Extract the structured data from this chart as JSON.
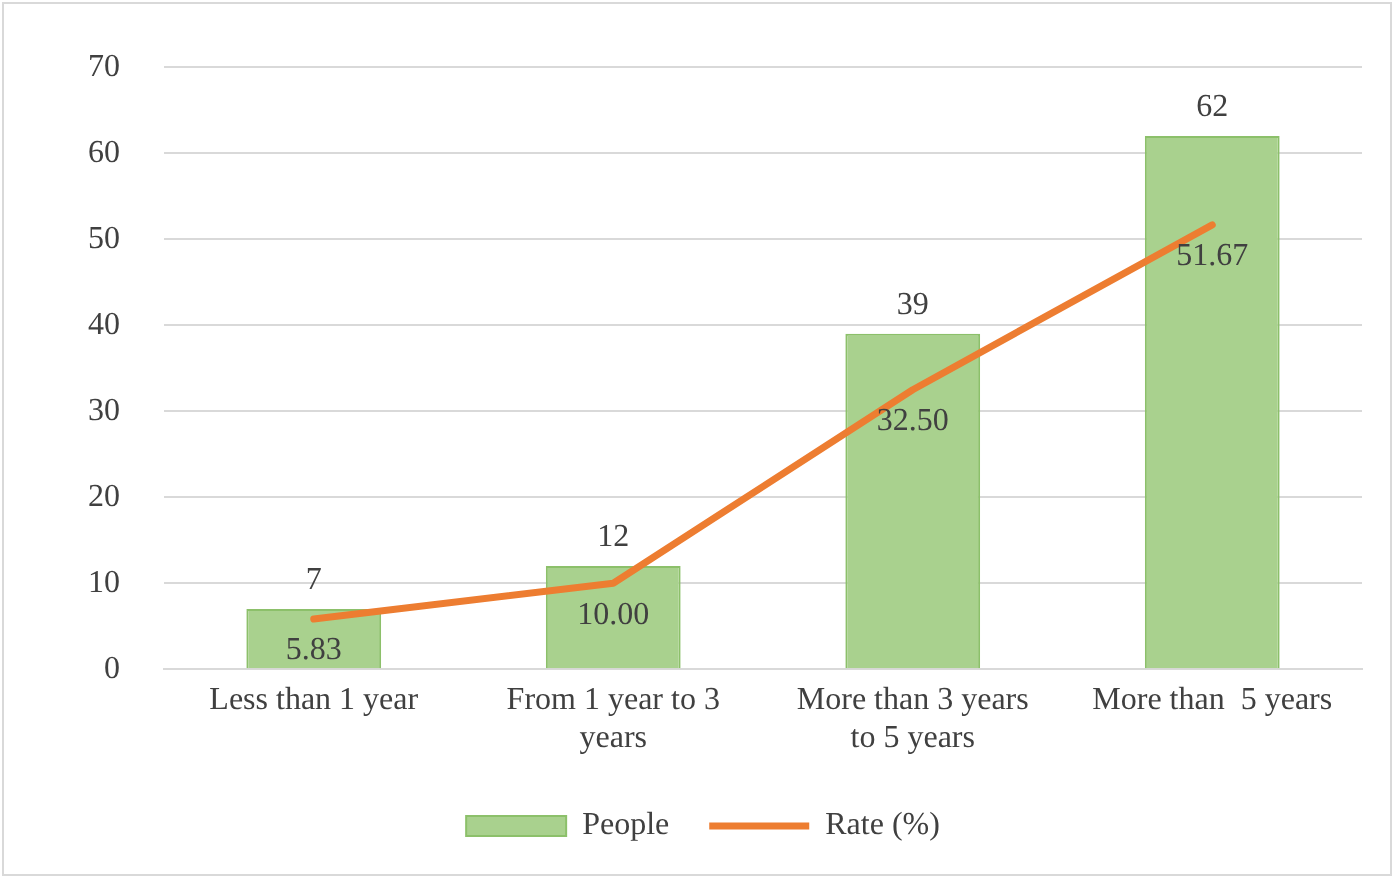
{
  "chart_data": {
    "type": "bar",
    "categories": [
      "Less than 1 year",
      "From 1 year to 3 years",
      "More than 3 years to 5 years",
      "More than  5 years"
    ],
    "series": [
      {
        "name": "People",
        "color": "#a9d18e",
        "values": [
          7,
          12,
          39,
          62
        ],
        "value_labels": [
          "7",
          "12",
          "39",
          "62"
        ]
      },
      {
        "name": "Rate (%)",
        "type": "line",
        "color": "#ed7d31",
        "values": [
          5.83,
          10,
          32.5,
          51.67
        ],
        "value_labels": [
          "5.83",
          "10.00",
          "32.50",
          "51.67"
        ],
        "marker": "none",
        "line_style": "solid"
      }
    ],
    "ylim": [
      0,
      70
    ],
    "yticks": [
      0,
      10,
      20,
      30,
      40,
      50,
      60,
      70
    ],
    "grid": "y",
    "legend": "bottom"
  }
}
